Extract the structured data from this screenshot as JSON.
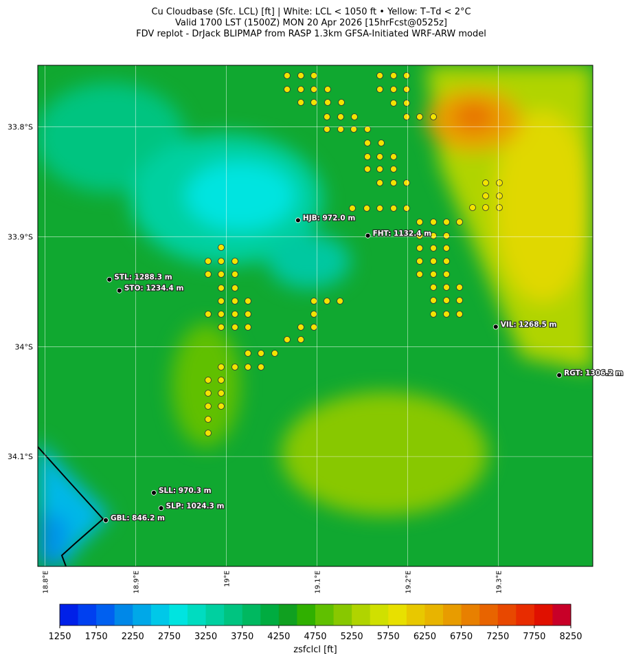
{
  "title_lines": [
    "Cu Cloudbase (Sfc. LCL) [ft]  |  White: LCL < 1050 ft • Yellow: T–Td < 2°C",
    "Valid 1700 LST (1500Z) MON 20 Apr 2026 [15hrFcst@0525z]",
    "FDV replot - DrJack BLIPMAP from RASP 1.3km GFSA-Initiated WRF-ARW model"
  ],
  "map": {
    "lonlim": [
      18.792,
      19.404
    ],
    "latlim": [
      -34.2,
      -33.744
    ],
    "lat_ticks": [
      {
        "value": -33.8,
        "label": "33.8°S"
      },
      {
        "value": -33.9,
        "label": "33.9°S"
      },
      {
        "value": -34.0,
        "label": "34°S"
      },
      {
        "value": -34.1,
        "label": "34.1°S"
      }
    ],
    "lon_ticks": [
      {
        "value": 18.8,
        "label": "18.8°E"
      },
      {
        "value": 18.9,
        "label": "18.9°E"
      },
      {
        "value": 19.0,
        "label": "19°E"
      },
      {
        "value": 19.1,
        "label": "19.1°E"
      },
      {
        "value": 19.2,
        "label": "19.2°E"
      },
      {
        "value": 19.3,
        "label": "19.3°E"
      }
    ],
    "stations": [
      {
        "label": "HJB: 972.0 m",
        "lon": 19.079,
        "lat": -33.885
      },
      {
        "label": "FHT: 1132.4 m",
        "lon": 19.156,
        "lat": -33.899
      },
      {
        "label": "STL: 1288.3 m",
        "lon": 18.871,
        "lat": -33.939
      },
      {
        "label": "STO: 1234.4 m",
        "lon": 18.882,
        "lat": -33.949
      },
      {
        "label": "VIL: 1268.5 m",
        "lon": 19.297,
        "lat": -33.982
      },
      {
        "label": "RGT: 1306.2 m",
        "lon": 19.367,
        "lat": -34.026
      },
      {
        "label": "SLL: 970.3 m",
        "lon": 18.92,
        "lat": -34.133
      },
      {
        "label": "SLP: 1024.3 m",
        "lon": 18.928,
        "lat": -34.147
      },
      {
        "label": "GBL: 846.2 m",
        "lon": 18.867,
        "lat": -34.158
      }
    ]
  },
  "colorbar": {
    "label": "zsfclcl [ft]",
    "bounds": [
      1250,
      8250
    ],
    "ticks": [
      1250,
      1750,
      2250,
      2750,
      3250,
      3750,
      4250,
      4750,
      5250,
      5750,
      6250,
      6750,
      7250,
      7750,
      8250
    ],
    "colors": [
      "#0020e8",
      "#0040f0",
      "#0060f0",
      "#0088e8",
      "#00a8e8",
      "#00c8e8",
      "#00e4e0",
      "#00dcc0",
      "#00d0a0",
      "#00c480",
      "#00b860",
      "#00ac40",
      "#10a020",
      "#30b000",
      "#60c000",
      "#88c800",
      "#b0d400",
      "#d0e000",
      "#e8e000",
      "#e8c800",
      "#e8b400",
      "#e89c00",
      "#e88000",
      "#e86400",
      "#e84800",
      "#e82c00",
      "#e01000",
      "#c80028"
    ]
  }
}
